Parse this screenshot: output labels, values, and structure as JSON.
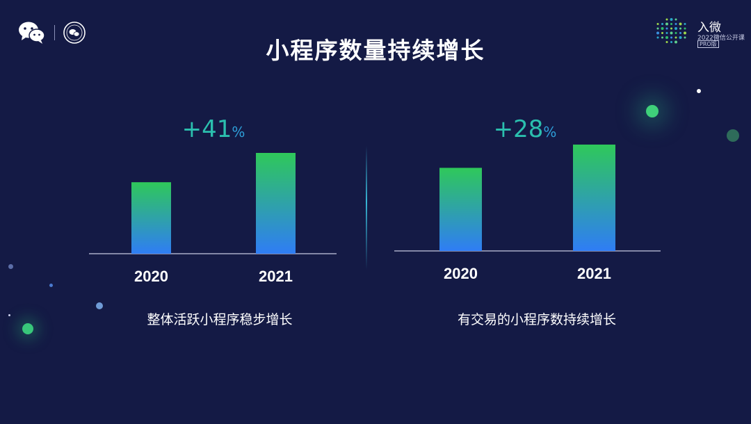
{
  "title": "小程序数量持续增长",
  "brand": {
    "name": "入微",
    "subtitle": "2022微信公开课",
    "tag": "PRO版"
  },
  "icons": {
    "left_logo": "wechat-logo-icon",
    "seal": "wechat-seal-icon",
    "brand_logo": "dot-matrix-logo-icon"
  },
  "colors": {
    "background": "#141a45",
    "bar_top": "#2fc85a",
    "bar_bottom": "#2f7df5",
    "growth_text": "#2bbfae"
  },
  "chart_data": [
    {
      "type": "bar",
      "categories": [
        "2020",
        "2021"
      ],
      "values": [
        100,
        141
      ],
      "growth_value": "+41",
      "growth_unit": "%",
      "caption": "整体活跃小程序稳步增长",
      "grid": false
    },
    {
      "type": "bar",
      "categories": [
        "2020",
        "2021"
      ],
      "values": [
        100,
        128
      ],
      "growth_value": "+28",
      "growth_unit": "%",
      "caption": "有交易的小程序数持续增长",
      "grid": false
    }
  ]
}
